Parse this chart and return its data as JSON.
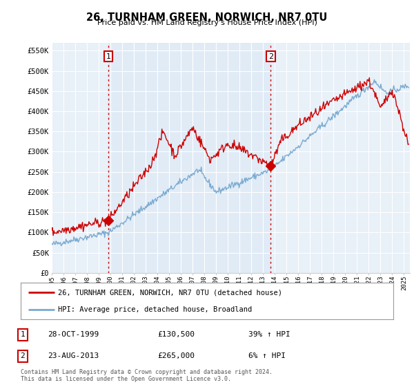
{
  "title": "26, TURNHAM GREEN, NORWICH, NR7 0TU",
  "subtitle": "Price paid vs. HM Land Registry's House Price Index (HPI)",
  "ylabel_ticks": [
    "£0",
    "£50K",
    "£100K",
    "£150K",
    "£200K",
    "£250K",
    "£300K",
    "£350K",
    "£400K",
    "£450K",
    "£500K",
    "£550K"
  ],
  "ytick_values": [
    0,
    50000,
    100000,
    150000,
    200000,
    250000,
    300000,
    350000,
    400000,
    450000,
    500000,
    550000
  ],
  "ylim": [
    0,
    570000
  ],
  "xlim_start": 1995.0,
  "xlim_end": 2025.5,
  "background_color": "#ffffff",
  "plot_bg_color": "#e8f0f8",
  "grid_color": "#ffffff",
  "red_line_color": "#cc0000",
  "blue_line_color": "#7aaad0",
  "vline_color": "#cc0000",
  "vline_style": ":",
  "fill_between_color": "#dce8f5",
  "marker1_x": 1999.83,
  "marker1_y": 130500,
  "marker2_x": 2013.65,
  "marker2_y": 265000,
  "marker1_label": "1",
  "marker2_label": "2",
  "legend_line1": "26, TURNHAM GREEN, NORWICH, NR7 0TU (detached house)",
  "legend_line2": "HPI: Average price, detached house, Broadland",
  "annotation1_num": "1",
  "annotation1_date": "28-OCT-1999",
  "annotation1_price": "£130,500",
  "annotation1_hpi": "39% ↑ HPI",
  "annotation2_num": "2",
  "annotation2_date": "23-AUG-2013",
  "annotation2_price": "£265,000",
  "annotation2_hpi": "6% ↑ HPI",
  "footer": "Contains HM Land Registry data © Crown copyright and database right 2024.\nThis data is licensed under the Open Government Licence v3.0.",
  "xtick_years": [
    1995,
    1996,
    1997,
    1998,
    1999,
    2000,
    2001,
    2002,
    2003,
    2004,
    2005,
    2006,
    2007,
    2008,
    2009,
    2010,
    2011,
    2012,
    2013,
    2014,
    2015,
    2016,
    2017,
    2018,
    2019,
    2020,
    2021,
    2022,
    2023,
    2024,
    2025
  ]
}
